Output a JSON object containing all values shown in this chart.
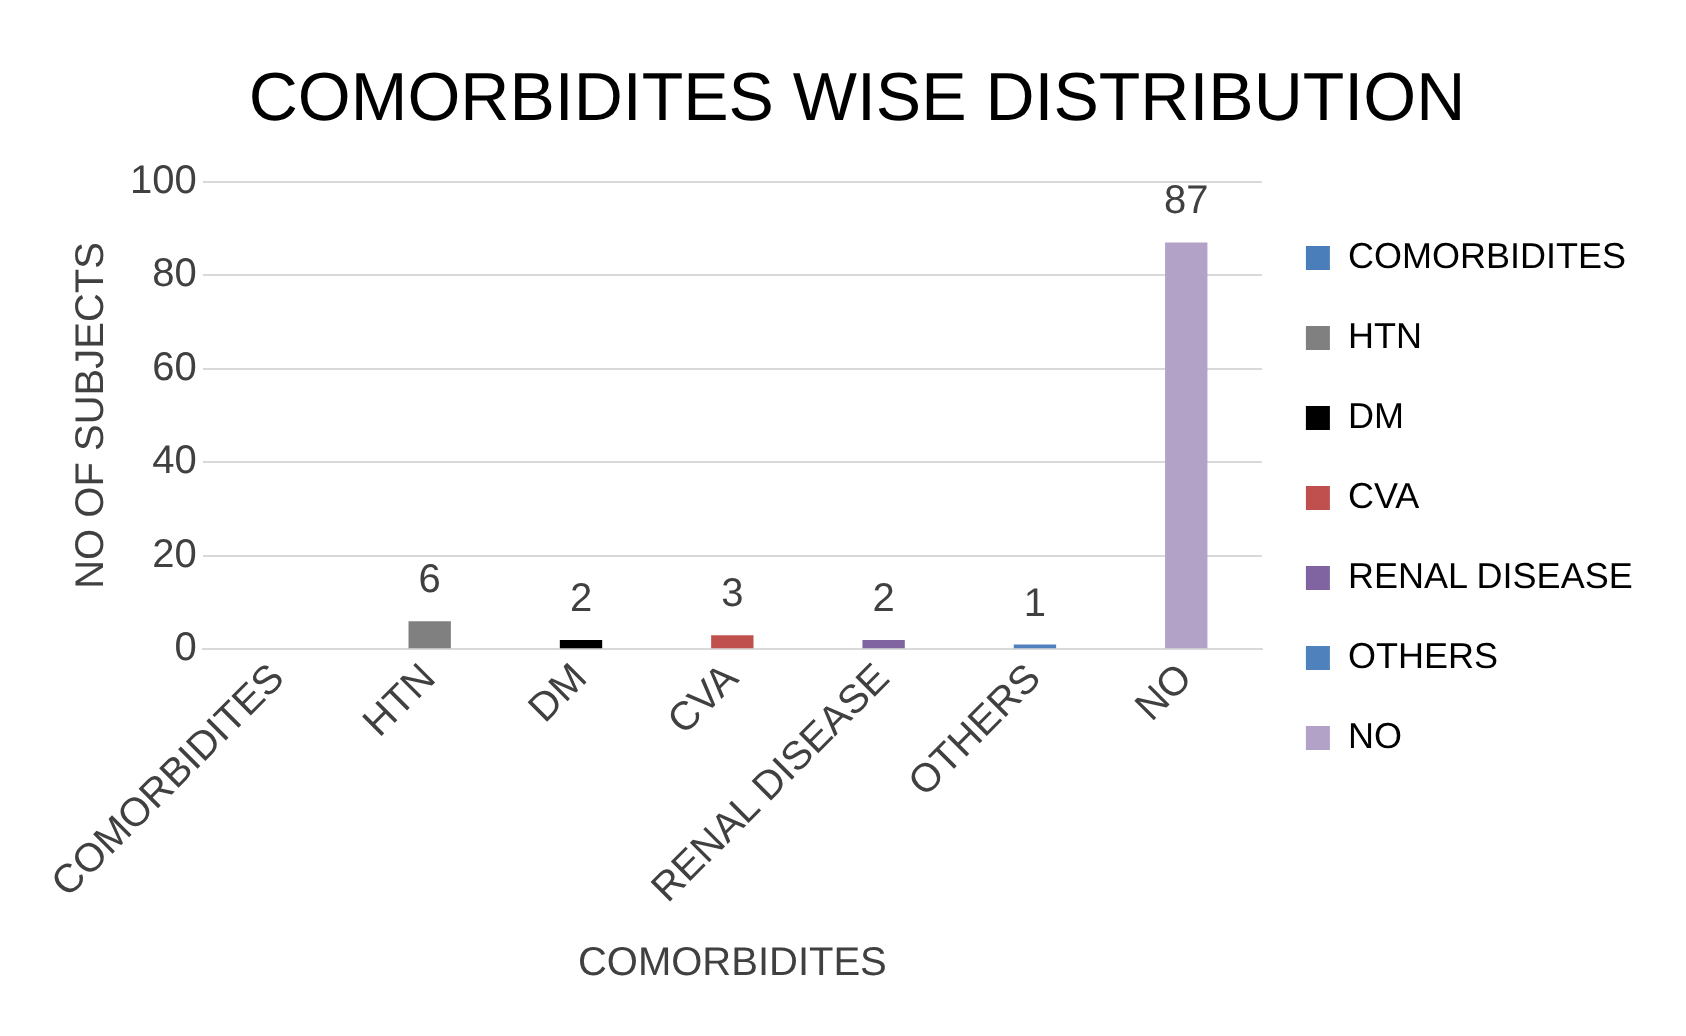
{
  "chart_data": {
    "type": "bar",
    "title": "COMORBIDITES WISE DISTRIBUTION",
    "xlabel": "COMORBIDITES",
    "ylabel": "NO OF SUBJECTS",
    "categories": [
      "COMORBIDITES",
      "HTN",
      "DM",
      "CVA",
      "RENAL DISEASE",
      "OTHERS",
      "NO"
    ],
    "series": [
      {
        "name": "COMORBIDITES",
        "color": "#4a7ebb",
        "values": [
          null,
          null,
          null,
          null,
          null,
          null,
          null
        ]
      },
      {
        "name": "HTN",
        "color": "#808080",
        "values": [
          null,
          6,
          null,
          null,
          null,
          null,
          null
        ]
      },
      {
        "name": "DM",
        "color": "#000000",
        "values": [
          null,
          null,
          2,
          null,
          null,
          null,
          null
        ]
      },
      {
        "name": "CVA",
        "color": "#c0504d",
        "values": [
          null,
          null,
          null,
          3,
          null,
          null,
          null
        ]
      },
      {
        "name": "RENAL DISEASE",
        "color": "#8064a2",
        "values": [
          null,
          null,
          null,
          null,
          2,
          null,
          null
        ]
      },
      {
        "name": "OTHERS",
        "color": "#4f81bd",
        "values": [
          null,
          null,
          null,
          null,
          null,
          1,
          null
        ]
      },
      {
        "name": "NO",
        "color": "#b3a2c7",
        "values": [
          null,
          null,
          null,
          null,
          null,
          null,
          87
        ]
      }
    ],
    "ylim": [
      0,
      100
    ],
    "yticks": [
      0,
      20,
      40,
      60,
      80,
      100
    ],
    "grid": "y",
    "legend": "right",
    "data_labels": true
  }
}
